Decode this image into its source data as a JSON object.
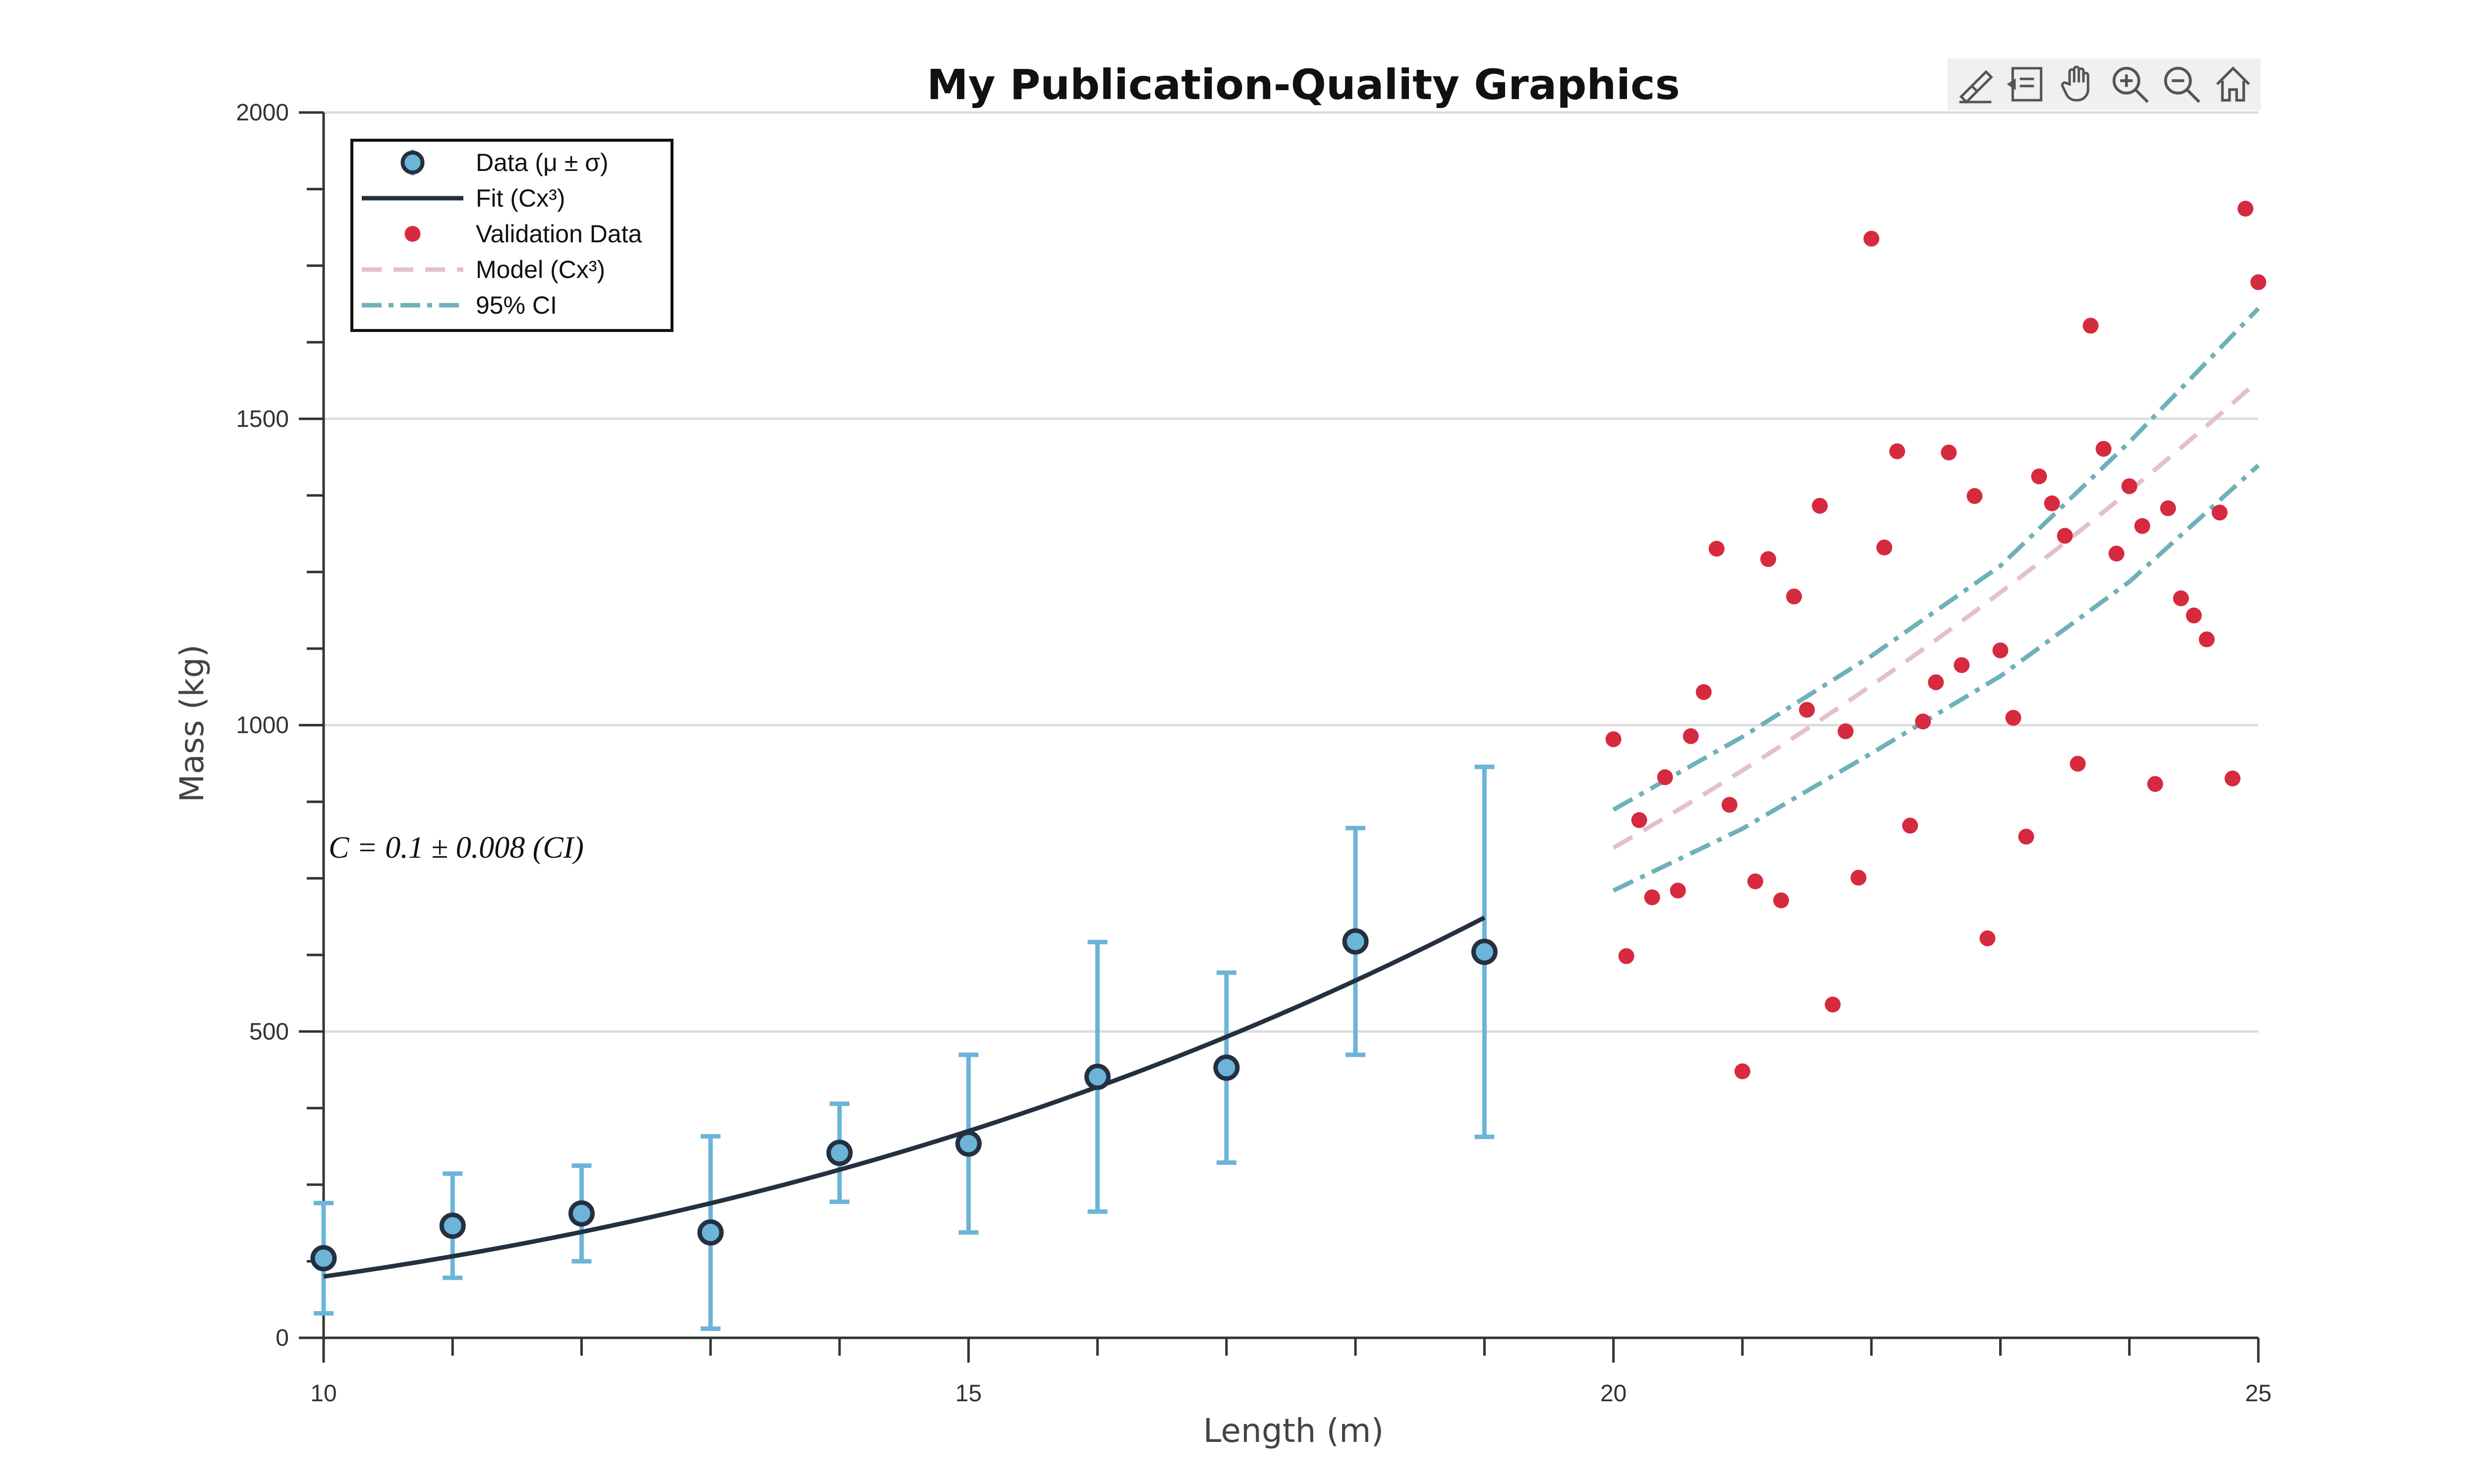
{
  "toolbar": {
    "icons": [
      "edit-brush-icon",
      "data-cursor-icon",
      "pan-hand-icon",
      "zoom-in-icon",
      "zoom-out-icon",
      "home-icon"
    ]
  },
  "colors": {
    "data_marker_fill": "#6cb4d8",
    "data_marker_edge": "#243040",
    "errorbar": "#6cb4d8",
    "fit_line": "#243040",
    "validation": "#d62a3e",
    "model_line": "#e3c0cb",
    "ci_line": "#6fb1b8",
    "grid": "#dddddd",
    "axis": "#333333"
  },
  "chart_data": {
    "type": "scatter",
    "title": "My Publication-Quality Graphics",
    "xlabel": "Length (m)",
    "ylabel": "Mass (kg)",
    "xlim": [
      10,
      25
    ],
    "ylim": [
      0,
      2000
    ],
    "xticks": [
      10,
      15,
      20,
      25
    ],
    "xtick_labels": [
      "10",
      "15",
      "20",
      "25"
    ],
    "yticks": [
      0,
      500,
      1000,
      1500,
      2000
    ],
    "ytick_labels": [
      "0",
      "500",
      "1000",
      "1500",
      "2000"
    ],
    "grid": "horizontal",
    "legend_position": "top-left",
    "annotation": "C  =  0.1  ± 0.008  (CI)",
    "annotation_at": {
      "x": 10,
      "y": 800
    },
    "series": [
      {
        "name": "Data (μ ± σ)",
        "kind": "errorbar",
        "x": [
          10,
          11,
          12,
          13,
          14,
          15,
          16,
          17,
          18,
          19
        ],
        "y": [
          130,
          183,
          203,
          172,
          302,
          317,
          426,
          441,
          647,
          630
        ],
        "err": [
          90,
          85,
          78,
          157,
          80,
          145,
          220,
          155,
          185,
          302
        ]
      },
      {
        "name": "Fit (Cx³)",
        "kind": "line",
        "formula": "C*x^3",
        "C": 0.1,
        "x_range": [
          10,
          19
        ]
      },
      {
        "name": "Validation Data",
        "kind": "scatter",
        "points": [
          [
            20,
            977
          ],
          [
            20.1,
            623
          ],
          [
            20.2,
            845
          ],
          [
            20.3,
            719
          ],
          [
            20.4,
            915
          ],
          [
            20.5,
            730
          ],
          [
            20.6,
            982
          ],
          [
            20.7,
            1054
          ],
          [
            20.8,
            1288
          ],
          [
            20.9,
            870
          ],
          [
            21.1,
            745
          ],
          [
            21.2,
            1271
          ],
          [
            21.3,
            714
          ],
          [
            21.4,
            1210
          ],
          [
            21.5,
            1025
          ],
          [
            21.6,
            1358
          ],
          [
            21.7,
            544
          ],
          [
            21.8,
            990
          ],
          [
            21.9,
            751
          ],
          [
            22,
            1794
          ],
          [
            22.1,
            1290
          ],
          [
            22.2,
            1447
          ],
          [
            22.3,
            836
          ],
          [
            22.4,
            1006
          ],
          [
            22.5,
            1070
          ],
          [
            22.6,
            1445
          ],
          [
            22.7,
            1098
          ],
          [
            22.8,
            1374
          ],
          [
            22.9,
            652
          ],
          [
            23,
            1122
          ],
          [
            23.1,
            1012
          ],
          [
            23.2,
            818
          ],
          [
            23.3,
            1406
          ],
          [
            23.4,
            1362
          ],
          [
            23.5,
            1309
          ],
          [
            23.6,
            937
          ],
          [
            23.7,
            1652
          ],
          [
            23.8,
            1451
          ],
          [
            23.9,
            1280
          ],
          [
            24,
            1390
          ],
          [
            24.1,
            1325
          ],
          [
            24.2,
            904
          ],
          [
            24.3,
            1354
          ],
          [
            24.4,
            1207
          ],
          [
            24.5,
            1179
          ],
          [
            24.6,
            1140
          ],
          [
            24.7,
            1347
          ],
          [
            24.8,
            913
          ],
          [
            24.9,
            1843
          ],
          [
            25,
            1723
          ],
          [
            21,
            435
          ]
        ]
      },
      {
        "name": "Model (Cx³)",
        "kind": "line",
        "style": "dashed",
        "formula": "C*x^3",
        "C": 0.1,
        "x_range": [
          20,
          25
        ]
      },
      {
        "name": "95% CI",
        "kind": "band-lines",
        "style": "dash-dot",
        "upper": [
          [
            20,
            862
          ],
          [
            21,
            981
          ],
          [
            22,
            1113
          ],
          [
            23,
            1260
          ],
          [
            24,
            1462
          ],
          [
            25,
            1680
          ]
        ],
        "lower": [
          [
            20,
            730
          ],
          [
            21,
            831
          ],
          [
            22,
            954
          ],
          [
            23,
            1080
          ],
          [
            24,
            1234
          ],
          [
            25,
            1424
          ]
        ]
      }
    ],
    "legend_entries": [
      "Data  (μ  ±  σ)",
      "Fit  (Cx³)",
      "Validation Data",
      "Model  (Cx³)",
      "95% CI"
    ]
  }
}
